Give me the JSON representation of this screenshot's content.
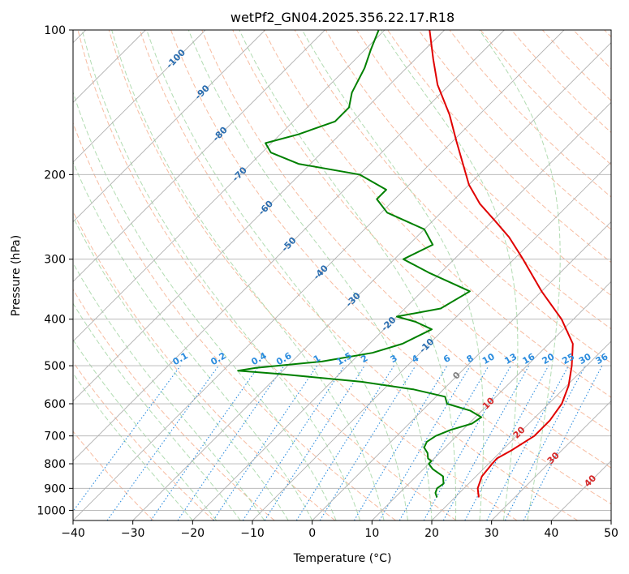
{
  "chart_data": {
    "type": "skew-t",
    "title": "wetPf2_GN04.2025.356.22.17.R18",
    "xlabel": "Temperature (°C)",
    "ylabel": "Pressure (hPa)",
    "xlim": [
      -40,
      50
    ],
    "ylim": [
      1050,
      100
    ],
    "y_scale": "log",
    "grid": true,
    "x_ticks": [
      "−40",
      "−30",
      "−20",
      "−10",
      "0",
      "10",
      "20",
      "30",
      "40",
      "50"
    ],
    "y_ticks": [
      {
        "p": 100,
        "label": "100"
      },
      {
        "p": 200,
        "label": "200"
      },
      {
        "p": 300,
        "label": "300"
      },
      {
        "p": 400,
        "label": "400"
      },
      {
        "p": 500,
        "label": "500"
      },
      {
        "p": 600,
        "label": "600"
      },
      {
        "p": 700,
        "label": "700"
      },
      {
        "p": 800,
        "label": "800"
      },
      {
        "p": 900,
        "label": "900"
      },
      {
        "p": 1000,
        "label": "1000"
      }
    ],
    "colors": {
      "temperature": "#e00000",
      "dewpoint": "#008000",
      "isotherm": "#b0b0b0",
      "dry_adiabat": "#f4a582",
      "moist_adiabat": "#9fd39f",
      "mixing_ratio": "#2b8cde",
      "dry_adiabat_label": "#d62728",
      "isotherm_label": "#2a6db0",
      "mixing_label": "#2b8cde"
    },
    "temperature_profile": [
      {
        "p": 940,
        "t": 24.0
      },
      {
        "p": 900,
        "t": 22.3
      },
      {
        "p": 850,
        "t": 21.0
      },
      {
        "p": 800,
        "t": 20.6
      },
      {
        "p": 780,
        "t": 20.5
      },
      {
        "p": 750,
        "t": 21.6
      },
      {
        "p": 700,
        "t": 23.0
      },
      {
        "p": 650,
        "t": 23.0
      },
      {
        "p": 600,
        "t": 22.2
      },
      {
        "p": 550,
        "t": 20.3
      },
      {
        "p": 500,
        "t": 17.5
      },
      {
        "p": 450,
        "t": 14.0
      },
      {
        "p": 400,
        "t": 8.0
      },
      {
        "p": 350,
        "t": 0.0
      },
      {
        "p": 300,
        "t": -8.5
      },
      {
        "p": 270,
        "t": -14.5
      },
      {
        "p": 250,
        "t": -19.5
      },
      {
        "p": 230,
        "t": -25.0
      },
      {
        "p": 210,
        "t": -30.0
      },
      {
        "p": 190,
        "t": -34.5
      },
      {
        "p": 170,
        "t": -39.5
      },
      {
        "p": 150,
        "t": -45.0
      },
      {
        "p": 130,
        "t": -52.0
      },
      {
        "p": 115,
        "t": -57.0
      },
      {
        "p": 100,
        "t": -62.5
      }
    ],
    "dewpoint_profile": [
      {
        "p": 940,
        "t": 17.0
      },
      {
        "p": 920,
        "t": 16.0
      },
      {
        "p": 900,
        "t": 15.5
      },
      {
        "p": 880,
        "t": 15.8
      },
      {
        "p": 850,
        "t": 14.5
      },
      {
        "p": 820,
        "t": 11.5
      },
      {
        "p": 800,
        "t": 10.0
      },
      {
        "p": 790,
        "t": 10.0
      },
      {
        "p": 780,
        "t": 9.0
      },
      {
        "p": 760,
        "t": 8.0
      },
      {
        "p": 740,
        "t": 6.5
      },
      {
        "p": 720,
        "t": 6.0
      },
      {
        "p": 700,
        "t": 6.5
      },
      {
        "p": 680,
        "t": 8.0
      },
      {
        "p": 660,
        "t": 10.5
      },
      {
        "p": 640,
        "t": 11.0
      },
      {
        "p": 620,
        "t": 8.0
      },
      {
        "p": 600,
        "t": 3.0
      },
      {
        "p": 580,
        "t": 1.5
      },
      {
        "p": 560,
        "t": -5.0
      },
      {
        "p": 540,
        "t": -15.0
      },
      {
        "p": 520,
        "t": -30.0
      },
      {
        "p": 512,
        "t": -37.5
      },
      {
        "p": 505,
        "t": -35.0
      },
      {
        "p": 490,
        "t": -25.0
      },
      {
        "p": 470,
        "t": -18.0
      },
      {
        "p": 450,
        "t": -14.5
      },
      {
        "p": 420,
        "t": -12.0
      },
      {
        "p": 405,
        "t": -16.0
      },
      {
        "p": 395,
        "t": -20.0
      },
      {
        "p": 380,
        "t": -14.0
      },
      {
        "p": 350,
        "t": -12.0
      },
      {
        "p": 320,
        "t": -22.0
      },
      {
        "p": 300,
        "t": -28.5
      },
      {
        "p": 280,
        "t": -26.0
      },
      {
        "p": 260,
        "t": -30.0
      },
      {
        "p": 240,
        "t": -39.0
      },
      {
        "p": 225,
        "t": -43.0
      },
      {
        "p": 215,
        "t": -43.0
      },
      {
        "p": 200,
        "t": -50.0
      },
      {
        "p": 190,
        "t": -62.0
      },
      {
        "p": 180,
        "t": -68.5
      },
      {
        "p": 172,
        "t": -71.0
      },
      {
        "p": 165,
        "t": -67.0
      },
      {
        "p": 155,
        "t": -63.0
      },
      {
        "p": 145,
        "t": -63.0
      },
      {
        "p": 135,
        "t": -65.0
      },
      {
        "p": 120,
        "t": -67.0
      },
      {
        "p": 110,
        "t": -69.0
      },
      {
        "p": 100,
        "t": -71.0
      }
    ],
    "isotherm_labels": [
      {
        "t": -100,
        "p": 115,
        "text": "-100"
      },
      {
        "t": -90,
        "p": 135,
        "text": "-90"
      },
      {
        "t": -80,
        "p": 165,
        "text": "-80"
      },
      {
        "t": -70,
        "p": 200,
        "text": "-70"
      },
      {
        "t": -60,
        "p": 235,
        "text": "-60"
      },
      {
        "t": -50,
        "p": 280,
        "text": "-50"
      },
      {
        "t": -40,
        "p": 320,
        "text": "-40"
      },
      {
        "t": -30,
        "p": 365,
        "text": "-30"
      },
      {
        "t": -20,
        "p": 410,
        "text": "-20"
      },
      {
        "t": -10,
        "p": 455,
        "text": "-10"
      },
      {
        "t": 0,
        "p": 525,
        "text": "0"
      },
      {
        "t": 10,
        "p": 600,
        "text": "10"
      },
      {
        "t": 20,
        "p": 690,
        "text": "20"
      },
      {
        "t": 30,
        "p": 780,
        "text": "30"
      },
      {
        "t": 40,
        "p": 870,
        "text": "40"
      }
    ],
    "mixing_ratio_labels": [
      {
        "w": 0.1,
        "text": "0.1"
      },
      {
        "w": 0.2,
        "text": "0.2"
      },
      {
        "w": 0.4,
        "text": "0.4"
      },
      {
        "w": 0.6,
        "text": "0.6"
      },
      {
        "w": 1,
        "text": "1"
      },
      {
        "w": 1.5,
        "text": "1.5"
      },
      {
        "w": 2,
        "text": "2"
      },
      {
        "w": 3,
        "text": "3"
      },
      {
        "w": 4,
        "text": "4"
      },
      {
        "w": 6,
        "text": "6"
      },
      {
        "w": 8,
        "text": "8"
      },
      {
        "w": 10,
        "text": "10"
      },
      {
        "w": 13,
        "text": "13"
      },
      {
        "w": 16,
        "text": "16"
      },
      {
        "w": 20,
        "text": "20"
      },
      {
        "w": 25,
        "text": "25"
      },
      {
        "w": 30,
        "text": "30"
      },
      {
        "w": 36,
        "text": "36"
      }
    ]
  }
}
